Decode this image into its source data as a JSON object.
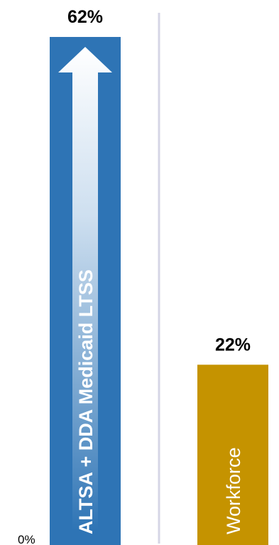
{
  "chart_data": {
    "type": "bar",
    "categories": [
      "ALTSA + DDA Medicaid LTSS",
      "Workforce"
    ],
    "values": [
      62,
      22
    ],
    "value_labels": [
      "62%",
      "22%"
    ],
    "bar_colors": [
      "#2e74b5",
      "#c59300"
    ],
    "divider_color": "#d6d6e6",
    "arrow_color": "#ffffff",
    "ylim": [
      0,
      62
    ],
    "y_tick_label": "0%",
    "title": "",
    "xlabel": "",
    "ylabel": ""
  }
}
